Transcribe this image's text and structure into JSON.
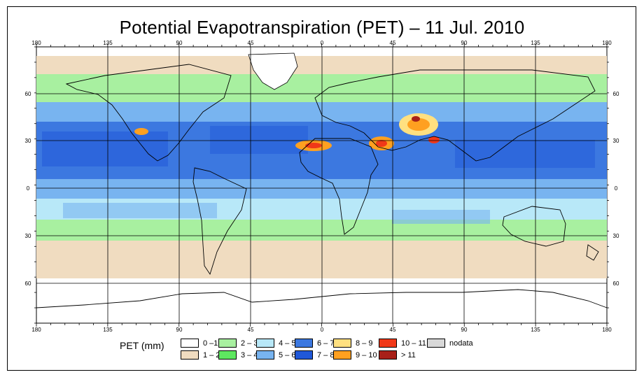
{
  "title": "Potential Evapotranspiration (PET) – 11 Jul. 2010",
  "legend": {
    "title": "PET (mm)",
    "items": [
      {
        "label": "0 –1",
        "color": "#ffffff"
      },
      {
        "label": "1 – 2",
        "color": "#f0dcc0"
      },
      {
        "label": "2 – 3",
        "color": "#a8f0a0"
      },
      {
        "label": "3 – 4",
        "color": "#5ee860"
      },
      {
        "label": "4 – 5",
        "color": "#b8e8f8"
      },
      {
        "label": "5 – 6",
        "color": "#78b4f0"
      },
      {
        "label": "6 – 7",
        "color": "#3c78e0"
      },
      {
        "label": "7 – 8",
        "color": "#2058d8"
      },
      {
        "label": "8 – 9",
        "color": "#ffe080"
      },
      {
        "label": "9 – 10",
        "color": "#ffa020"
      },
      {
        "label": "10 – 11",
        "color": "#f03818"
      },
      {
        "label": "> 11",
        "color": "#a82018"
      },
      {
        "label": "nodata",
        "color": "#d8d8d8"
      }
    ]
  },
  "axes": {
    "lon_labels": [
      "180",
      "135",
      "90",
      "45",
      "0",
      "45",
      "90",
      "135",
      "180"
    ],
    "lat_labels": [
      "60",
      "30",
      "0",
      "30",
      "60"
    ]
  }
}
